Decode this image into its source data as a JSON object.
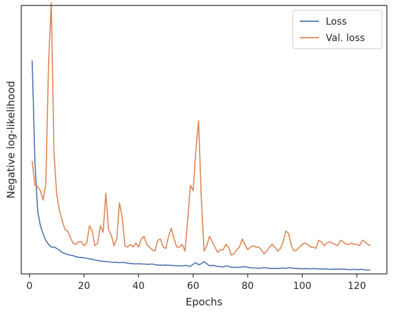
{
  "chart_data": {
    "type": "line",
    "xlabel": "Epochs",
    "ylabel": "Negative log-likelihood",
    "xlim": [
      -3,
      131
    ],
    "ylim": [
      0.0,
      1.0
    ],
    "x_ticks": [
      0,
      20,
      40,
      60,
      80,
      100,
      120
    ],
    "y_ticks_visible": false,
    "grid": false,
    "legend_position": "top-right",
    "series": [
      {
        "name": "Loss",
        "color": "#4c72b0",
        "x": [
          1,
          2,
          3,
          4,
          5,
          6,
          7,
          8,
          9,
          10,
          11,
          12,
          13,
          14,
          15,
          16,
          17,
          18,
          19,
          20,
          21,
          22,
          23,
          24,
          25,
          26,
          27,
          28,
          29,
          30,
          31,
          32,
          33,
          34,
          35,
          36,
          37,
          38,
          39,
          40,
          41,
          42,
          43,
          44,
          45,
          46,
          47,
          48,
          49,
          50,
          51,
          52,
          53,
          54,
          55,
          56,
          57,
          58,
          59,
          60,
          61,
          62,
          63,
          64,
          65,
          66,
          67,
          68,
          69,
          70,
          71,
          72,
          73,
          74,
          75,
          76,
          77,
          78,
          79,
          80,
          81,
          82,
          83,
          84,
          85,
          86,
          87,
          88,
          89,
          90,
          91,
          92,
          93,
          94,
          95,
          96,
          97,
          98,
          99,
          100,
          101,
          102,
          103,
          104,
          105,
          106,
          107,
          108,
          109,
          110,
          111,
          112,
          113,
          114,
          115,
          116,
          117,
          118,
          119,
          120,
          121,
          122,
          123,
          124,
          125
        ],
        "y": [
          0.795,
          0.42,
          0.235,
          0.18,
          0.15,
          0.125,
          0.11,
          0.1,
          0.1,
          0.095,
          0.088,
          0.08,
          0.076,
          0.072,
          0.07,
          0.068,
          0.064,
          0.062,
          0.061,
          0.06,
          0.058,
          0.056,
          0.054,
          0.052,
          0.05,
          0.048,
          0.047,
          0.046,
          0.045,
          0.044,
          0.043,
          0.043,
          0.042,
          0.043,
          0.042,
          0.04,
          0.039,
          0.038,
          0.037,
          0.038,
          0.037,
          0.037,
          0.036,
          0.036,
          0.037,
          0.034,
          0.033,
          0.033,
          0.032,
          0.033,
          0.032,
          0.032,
          0.031,
          0.03,
          0.031,
          0.029,
          0.032,
          0.03,
          0.028,
          0.036,
          0.042,
          0.034,
          0.038,
          0.046,
          0.038,
          0.03,
          0.032,
          0.03,
          0.028,
          0.027,
          0.026,
          0.03,
          0.028,
          0.025,
          0.024,
          0.025,
          0.024,
          0.027,
          0.026,
          0.025,
          0.023,
          0.022,
          0.022,
          0.021,
          0.022,
          0.023,
          0.022,
          0.021,
          0.02,
          0.021,
          0.02,
          0.021,
          0.022,
          0.021,
          0.023,
          0.022,
          0.021,
          0.02,
          0.02,
          0.019,
          0.02,
          0.019,
          0.019,
          0.02,
          0.019,
          0.019,
          0.018,
          0.019,
          0.018,
          0.017,
          0.017,
          0.018,
          0.017,
          0.018,
          0.018,
          0.017,
          0.016,
          0.016,
          0.017,
          0.016,
          0.016,
          0.017,
          0.015,
          0.014,
          0.015
        ]
      },
      {
        "name": "Val. loss",
        "color": "#dd8452",
        "x": [
          1,
          2,
          3,
          4,
          5,
          6,
          7,
          8,
          9,
          10,
          11,
          12,
          13,
          14,
          15,
          16,
          17,
          18,
          19,
          20,
          21,
          22,
          23,
          24,
          25,
          26,
          27,
          28,
          29,
          30,
          31,
          32,
          33,
          34,
          35,
          36,
          37,
          38,
          39,
          40,
          41,
          42,
          43,
          44,
          45,
          46,
          47,
          48,
          49,
          50,
          51,
          52,
          53,
          54,
          55,
          56,
          57,
          58,
          59,
          60,
          61,
          62,
          63,
          64,
          65,
          66,
          67,
          68,
          69,
          70,
          71,
          72,
          73,
          74,
          75,
          76,
          77,
          78,
          79,
          80,
          81,
          82,
          83,
          84,
          85,
          86,
          87,
          88,
          89,
          90,
          91,
          92,
          93,
          94,
          95,
          96,
          97,
          98,
          99,
          100,
          101,
          102,
          103,
          104,
          105,
          106,
          107,
          108,
          109,
          110,
          111,
          112,
          113,
          114,
          115,
          116,
          117,
          118,
          119,
          120,
          121,
          122,
          123,
          124,
          125
        ],
        "y": [
          0.42,
          0.33,
          0.325,
          0.31,
          0.275,
          0.335,
          0.78,
          1.01,
          0.45,
          0.295,
          0.235,
          0.2,
          0.165,
          0.16,
          0.135,
          0.115,
          0.11,
          0.12,
          0.12,
          0.105,
          0.115,
          0.18,
          0.16,
          0.105,
          0.115,
          0.18,
          0.155,
          0.3,
          0.165,
          0.145,
          0.105,
          0.13,
          0.265,
          0.21,
          0.105,
          0.1,
          0.11,
          0.1,
          0.115,
          0.1,
          0.13,
          0.14,
          0.11,
          0.1,
          0.09,
          0.085,
          0.125,
          0.13,
          0.1,
          0.095,
          0.14,
          0.17,
          0.13,
          0.1,
          0.1,
          0.11,
          0.085,
          0.2,
          0.33,
          0.31,
          0.46,
          0.57,
          0.28,
          0.085,
          0.105,
          0.14,
          0.12,
          0.1,
          0.08,
          0.09,
          0.09,
          0.11,
          0.1,
          0.07,
          0.075,
          0.09,
          0.1,
          0.13,
          0.11,
          0.09,
          0.1,
          0.105,
          0.1,
          0.1,
          0.09,
          0.075,
          0.085,
          0.1,
          0.11,
          0.1,
          0.085,
          0.095,
          0.12,
          0.16,
          0.15,
          0.105,
          0.085,
          0.09,
          0.1,
          0.11,
          0.115,
          0.11,
          0.1,
          0.1,
          0.095,
          0.125,
          0.12,
          0.105,
          0.115,
          0.12,
          0.115,
          0.11,
          0.105,
          0.125,
          0.12,
          0.11,
          0.11,
          0.115,
          0.11,
          0.11,
          0.105,
          0.125,
          0.12,
          0.11,
          0.105
        ]
      }
    ]
  }
}
